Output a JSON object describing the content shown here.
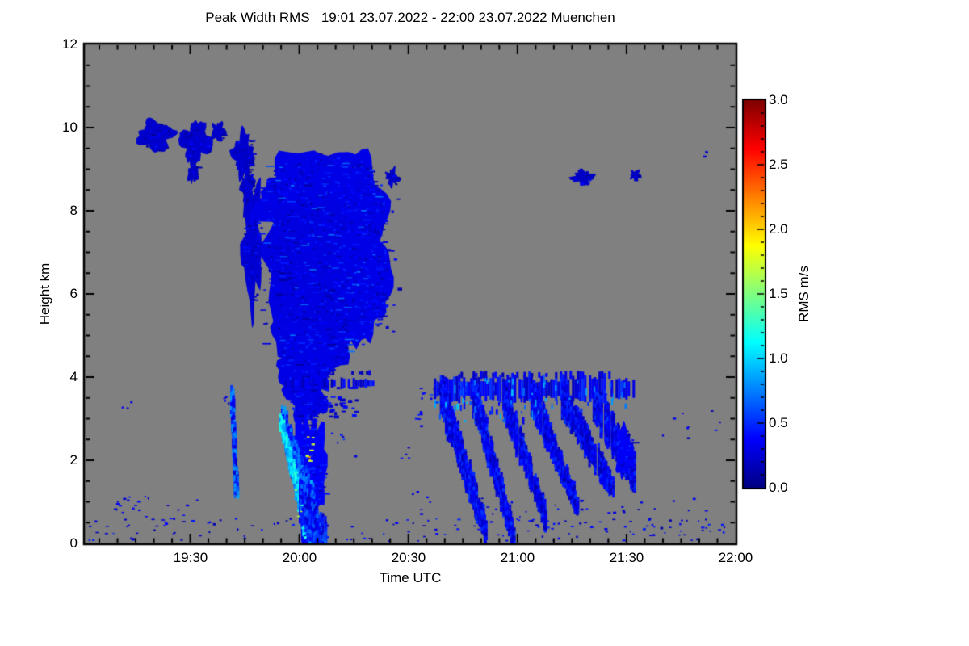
{
  "title": "Peak Width RMS   19:01 23.07.2022 - 22:00 23.07.2022 Muenchen",
  "chart_data": {
    "type": "heatmap",
    "title": "Peak Width RMS   19:01 23.07.2022 - 22:00 23.07.2022 Muenchen",
    "station": "Muenchen",
    "time_range": "19:01 23.07.2022 - 22:00 23.07.2022",
    "xlabel": "Time UTC",
    "ylabel": "Height km",
    "x_axis": {
      "start_min": 1,
      "end_min": 180,
      "tick_minutes": [
        30,
        60,
        90,
        120,
        150,
        180
      ],
      "tick_labels": [
        "19:30",
        "20:00",
        "20:30",
        "21:00",
        "21:30",
        "22:00"
      ],
      "minor_step_min": 5
    },
    "y_axis": {
      "min": 0,
      "max": 12,
      "tick_values": [
        0,
        2,
        4,
        6,
        8,
        10,
        12
      ],
      "tick_labels": [
        "0",
        "2",
        "4",
        "6",
        "8",
        "10",
        "12"
      ],
      "minor_step": 0.5
    },
    "colorbar": {
      "label": "RMS m/s",
      "min": 0.0,
      "max": 3.0,
      "tick_values": [
        0.0,
        0.5,
        1.0,
        1.5,
        2.0,
        2.5,
        3.0
      ],
      "tick_labels": [
        "0.0",
        "0.5",
        "1.0",
        "1.5",
        "2.0",
        "2.5",
        "3.0"
      ],
      "minor_step": 0.1
    },
    "colors": {
      "plot_background": "#808080",
      "page_background": "#ffffff",
      "frame": "#000000",
      "jet_stops": [
        [
          0,
          0,
          0,
          131
        ],
        [
          0.125,
          0,
          0,
          255
        ],
        [
          0.375,
          0,
          255,
          255
        ],
        [
          0.625,
          255,
          255,
          0
        ],
        [
          0.875,
          255,
          0,
          0
        ],
        [
          1,
          128,
          0,
          0
        ]
      ]
    },
    "features": [
      {
        "k": "b",
        "t": 20.5,
        "h": 9.8,
        "rt": 4.8,
        "rh": 0.36,
        "v": 0.22,
        "rag": 0.35
      },
      {
        "k": "b",
        "t": 31.5,
        "h": 9.65,
        "rt": 4.3,
        "rh": 0.45,
        "v": 0.22,
        "rag": 0.35
      },
      {
        "k": "b",
        "t": 30.8,
        "h": 8.95,
        "rt": 1.3,
        "rh": 0.3,
        "v": 0.2,
        "rag": 0.4
      },
      {
        "k": "b",
        "t": 37.8,
        "h": 9.9,
        "rt": 1.9,
        "rh": 0.22,
        "v": 0.2,
        "rag": 0.4
      },
      {
        "k": "b",
        "t": 44.5,
        "h": 9.35,
        "rt": 2.7,
        "rh": 0.5,
        "v": 0.22,
        "rag": 0.45
      },
      {
        "k": "b",
        "t": 45.8,
        "h": 8.5,
        "rt": 1.7,
        "rh": 0.55,
        "v": 0.2,
        "rag": 0.5
      },
      {
        "k": "b",
        "t": 47.0,
        "h": 7.2,
        "rt": 2.6,
        "rh": 1.5,
        "v": 0.24,
        "rag": 0.4
      },
      {
        "k": "b",
        "t": 64,
        "h": 8.3,
        "rt": 15,
        "rh": 1.15,
        "v": 0.3,
        "rag": 0.22
      },
      {
        "k": "b",
        "t": 74,
        "h": 8.0,
        "rt": 10,
        "rh": 1.4,
        "v": 0.3,
        "rag": 0.2
      },
      {
        "k": "b",
        "t": 63,
        "h": 6.7,
        "rt": 13,
        "rh": 1.55,
        "v": 0.28,
        "rag": 0.2
      },
      {
        "k": "b",
        "t": 77,
        "h": 6.4,
        "rt": 8,
        "rh": 1.5,
        "v": 0.3,
        "rag": 0.2
      },
      {
        "k": "b",
        "t": 64,
        "h": 5.2,
        "rt": 10.5,
        "rh": 1.15,
        "v": 0.28,
        "rag": 0.22
      },
      {
        "k": "b",
        "t": 62,
        "h": 4.4,
        "rt": 7.5,
        "rh": 0.8,
        "v": 0.3,
        "rag": 0.3
      },
      {
        "k": "b",
        "t": 85.5,
        "h": 8.8,
        "rt": 1.6,
        "rh": 0.2,
        "v": 0.2,
        "rag": 0.5
      },
      {
        "k": "d",
        "t": [
          83,
          88
        ],
        "h": [
          5,
          8.3
        ],
        "n": 14,
        "v": 0.25,
        "vj": 0.15,
        "size": 4
      },
      {
        "k": "d",
        "t": [
          50,
          83
        ],
        "h": [
          4.6,
          9.2
        ],
        "n": 150,
        "v": 0.45,
        "vj": 0.3,
        "size": 2,
        "wide": 9
      },
      {
        "k": "b",
        "t": 62,
        "h": 3.7,
        "rt": 5.5,
        "rh": 0.8,
        "v": 0.3,
        "rag": 0.3
      },
      {
        "k": "b",
        "t": 63,
        "h": 1.6,
        "rt": 4.2,
        "rh": 1.6,
        "v": 0.35,
        "rag": 0.3
      },
      {
        "k": "s",
        "t1": 55.5,
        "h1": 3.0,
        "t2": 64.5,
        "h2": 0.1,
        "w": 0.6,
        "w2": 1.8,
        "v": 0.6,
        "vj": 0.3
      },
      {
        "k": "s",
        "t1": 55.2,
        "h1": 2.9,
        "t2": 62.0,
        "h2": 0.35,
        "w": 0.35,
        "w2": 0.6,
        "v": 1.0,
        "vj": 0.25
      },
      {
        "k": "s",
        "t1": 60,
        "h1": 1.0,
        "t2": 67.5,
        "h2": 0.05,
        "w": 0.9,
        "v": 0.45,
        "vj": 0.25
      },
      {
        "k": "d",
        "t": [
          62.2,
          64.3
        ],
        "h": [
          1.9,
          2.6
        ],
        "n": 8,
        "v": 1.95,
        "vj": 0.35,
        "size": 4
      },
      {
        "k": "d",
        "t": [
          57.5,
          61
        ],
        "h": [
          0.6,
          1.5
        ],
        "n": 4,
        "v": 1.6,
        "vj": 0.5,
        "size": 3
      },
      {
        "k": "band",
        "t1": 56,
        "t2": 80.5,
        "h": 3.85,
        "th": 0.2,
        "v": 0.3,
        "gaps": 0.25
      },
      {
        "k": "band",
        "t1": 63,
        "t2": 80,
        "h": 4.1,
        "th": 0.1,
        "v": 0.25,
        "gaps": 0.5
      },
      {
        "k": "d",
        "t": [
          63.5,
          76
        ],
        "h": [
          3.0,
          3.8
        ],
        "n": 30,
        "v": 0.28,
        "vj": 0.15,
        "size": 5
      },
      {
        "k": "s",
        "t1": 41.5,
        "h1": 3.65,
        "t2": 42.8,
        "h2": 1.2,
        "w": 0.3,
        "v": 0.55,
        "vj": 0.35
      },
      {
        "k": "d",
        "t": [
          39.3,
          41
        ],
        "h": [
          3.3,
          3.7
        ],
        "n": 4,
        "v": 0.3,
        "vj": 0.15,
        "size": 3
      },
      {
        "k": "d",
        "t": [
          69,
          76
        ],
        "h": [
          2.0,
          2.65
        ],
        "n": 6,
        "v": 0.4,
        "vj": 0.2,
        "size": 3
      },
      {
        "k": "d",
        "t": [
          88,
          90.5
        ],
        "h": [
          1.9,
          2.4
        ],
        "n": 4,
        "v": 0.35,
        "vj": 0.15,
        "size": 3
      },
      {
        "k": "d",
        "t": [
          92,
          95.5
        ],
        "h": [
          2.7,
          3.35
        ],
        "n": 5,
        "v": 0.4,
        "vj": 0.2,
        "size": 3
      },
      {
        "k": "d",
        "t": [
          91,
          96
        ],
        "h": [
          0.5,
          1.3
        ],
        "n": 6,
        "v": 0.3,
        "vj": 0.15,
        "size": 3
      },
      {
        "k": "band",
        "t1": 97,
        "t2": 152,
        "h": 3.72,
        "th": 0.5,
        "v": 0.35,
        "gaps": 0.06
      },
      {
        "k": "band",
        "t1": 103,
        "t2": 146,
        "h": 4.05,
        "th": 0.14,
        "v": 0.28,
        "gaps": 0.45
      },
      {
        "k": "s",
        "t1": 99,
        "h1": 3.6,
        "t2": 111.5,
        "h2": 0.25,
        "w": 1.0,
        "w2": 0.55,
        "v": 0.35,
        "vj": 0.2
      },
      {
        "k": "s",
        "t1": 108,
        "h1": 3.6,
        "t2": 119,
        "h2": 0.15,
        "w": 0.85,
        "w2": 0.5,
        "v": 0.35,
        "vj": 0.2
      },
      {
        "k": "s",
        "t1": 116,
        "h1": 3.6,
        "t2": 128,
        "h2": 0.55,
        "w": 0.85,
        "w2": 0.5,
        "v": 0.33,
        "vj": 0.2
      },
      {
        "k": "s",
        "t1": 124,
        "h1": 3.55,
        "t2": 136.5,
        "h2": 0.9,
        "w": 0.85,
        "w2": 0.5,
        "v": 0.33,
        "vj": 0.2
      },
      {
        "k": "s",
        "t1": 132.5,
        "h1": 3.5,
        "t2": 146,
        "h2": 1.35,
        "w": 0.9,
        "w2": 0.55,
        "v": 0.33,
        "vj": 0.2
      },
      {
        "k": "s",
        "t1": 141,
        "h1": 3.45,
        "t2": 152,
        "h2": 1.7,
        "w": 0.9,
        "w2": 0.8,
        "v": 0.35,
        "vj": 0.2
      },
      {
        "k": "b",
        "t": 149.5,
        "h": 2.2,
        "rt": 2.3,
        "rh": 0.6,
        "v": 0.35,
        "rag": 0.35
      },
      {
        "k": "d",
        "t": [
          97,
          128
        ],
        "h": [
          2.9,
          4.0
        ],
        "n": 80,
        "v": 0.62,
        "vj": 0.35,
        "size": 2,
        "tall": 9
      },
      {
        "k": "d",
        "t": [
          128,
          150
        ],
        "h": [
          3.2,
          3.95
        ],
        "n": 30,
        "v": 0.55,
        "vj": 0.3,
        "size": 2,
        "tall": 7
      },
      {
        "k": "d",
        "t": [
          93,
          99
        ],
        "h": [
          3.1,
          3.8
        ],
        "n": 10,
        "v": 0.35,
        "vj": 0.2,
        "size": 3
      },
      {
        "k": "b",
        "t": 138,
        "h": 8.8,
        "rt": 3,
        "rh": 0.17,
        "v": 0.2,
        "rag": 0.4
      },
      {
        "k": "b",
        "t": 152.5,
        "h": 8.85,
        "rt": 1.4,
        "rh": 0.13,
        "v": 0.2,
        "rag": 0.4
      },
      {
        "k": "d",
        "t": [
          171.5,
          172.5
        ],
        "h": [
          9.3,
          9.65
        ],
        "n": 3,
        "v": 0.25,
        "vj": 0.1,
        "size": 3
      },
      {
        "k": "d",
        "t": [
          160,
          176
        ],
        "h": [
          2.5,
          3.2
        ],
        "n": 9,
        "v": 0.3,
        "vj": 0.15,
        "size": 3
      },
      {
        "k": "d",
        "t": [
          2,
          178
        ],
        "h": [
          0.05,
          0.6
        ],
        "n": 150,
        "v": 0.3,
        "vj": 0.2,
        "size": 3
      },
      {
        "k": "d",
        "t": [
          8,
          32
        ],
        "h": [
          0.55,
          1.15
        ],
        "n": 25,
        "v": 0.3,
        "vj": 0.15,
        "size": 3
      },
      {
        "k": "d",
        "t": [
          110,
          172
        ],
        "h": [
          0.5,
          1.1
        ],
        "n": 30,
        "v": 0.3,
        "vj": 0.15,
        "size": 3
      },
      {
        "k": "d",
        "t": [
          10,
          14
        ],
        "h": [
          3.15,
          3.4
        ],
        "n": 3,
        "v": 0.3,
        "vj": 0.1,
        "size": 3
      }
    ]
  }
}
